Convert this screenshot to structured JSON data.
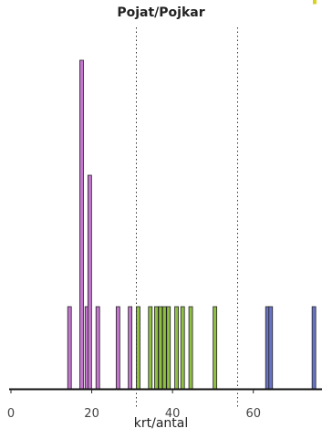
{
  "chart_data": {
    "type": "bar",
    "title": "Pojat/Pojkar",
    "xlabel": "krt/antal",
    "ylabel": "",
    "xlim": [
      0,
      77
    ],
    "ylim": [
      0,
      4.2
    ],
    "xticks": [
      0,
      20,
      40,
      60
    ],
    "xtick_labels": [
      "0",
      "20",
      "40",
      "60"
    ],
    "grid": false,
    "reference_lines_x": [
      31,
      56
    ],
    "series": [
      {
        "color": "#c276cc",
        "x": [
          14.5,
          17.5,
          18.8,
          19.5,
          21.5,
          26.5,
          29.5
        ],
        "values": [
          1,
          4,
          1,
          2.6,
          1,
          1,
          1
        ]
      },
      {
        "color": "#8fbf45",
        "x": [
          31.5,
          34.5,
          36,
          37,
          38,
          39,
          41,
          42.5,
          44.5,
          50.5
        ],
        "values": [
          1,
          1,
          1,
          1,
          1,
          1,
          1,
          1,
          1,
          1
        ]
      },
      {
        "color": "#6a74c4",
        "x": [
          63.5,
          64.3,
          75
        ],
        "values": [
          1,
          1,
          1
        ]
      }
    ]
  }
}
